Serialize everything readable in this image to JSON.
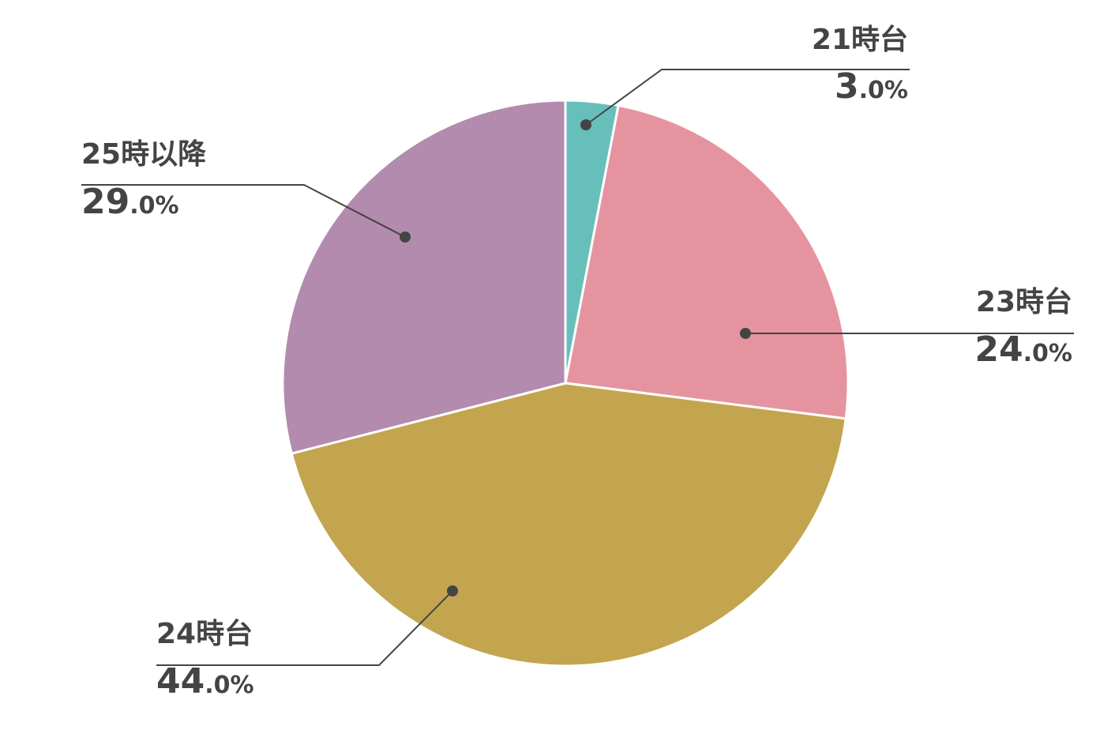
{
  "chart_data": {
    "type": "pie",
    "categories": [
      "21時台",
      "23時台",
      "24時台",
      "25時以降"
    ],
    "values": [
      3,
      24,
      44,
      29
    ],
    "value_labels": [
      "3.0%",
      "24.0%",
      "44.0%",
      "29.0%"
    ],
    "colors": [
      "#66bfbb",
      "#e5949f",
      "#c3a54f",
      "#b38bae"
    ]
  }
}
